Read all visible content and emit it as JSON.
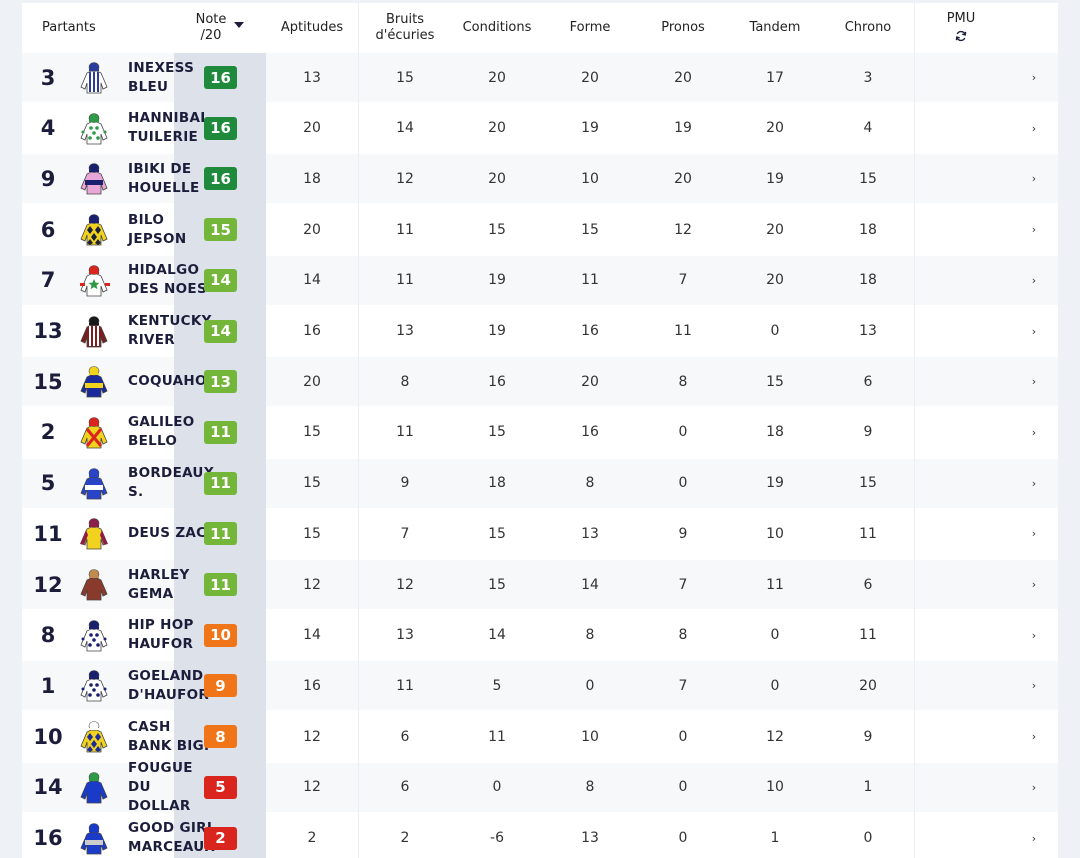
{
  "header": {
    "partants": "Partants",
    "note_line1": "Note",
    "note_line2": "/20",
    "aptitudes": "Aptitudes",
    "bruits_line1": "Bruits",
    "bruits_line2": "d'écuries",
    "conditions": "Conditions",
    "forme": "Forme",
    "pronos": "Pronos",
    "tandem": "Tandem",
    "chrono": "Chrono",
    "pmu": "PMU"
  },
  "colors": {
    "dark_green": "#1f8a3c",
    "light_green": "#74b63a",
    "orange": "#f07418",
    "red": "#d9251d"
  },
  "rows": [
    {
      "num": "3",
      "name": "INEXESS BLEU",
      "note": "16",
      "aptitudes": "13",
      "bruits": "15",
      "conditions": "20",
      "forme": "20",
      "pronos": "20",
      "tandem": "17",
      "chrono": "3",
      "badge": "dark_green",
      "silk": {
        "body": "#ffffff",
        "stripe": "#2a3c9c",
        "pattern": "stripes",
        "cap": "#2a3c9c"
      }
    },
    {
      "num": "4",
      "name": "HANNIBAL TUILERIE",
      "note": "16",
      "aptitudes": "20",
      "bruits": "14",
      "conditions": "20",
      "forme": "19",
      "pronos": "19",
      "tandem": "20",
      "chrono": "4",
      "badge": "dark_green",
      "silk": {
        "body": "#ffffff",
        "stripe": "#2f9a45",
        "pattern": "dots",
        "cap": "#2f9a45"
      }
    },
    {
      "num": "9",
      "name": "IBIKI DE HOUELLE",
      "note": "16",
      "aptitudes": "18",
      "bruits": "12",
      "conditions": "20",
      "forme": "10",
      "pronos": "20",
      "tandem": "19",
      "chrono": "15",
      "badge": "dark_green",
      "silk": {
        "body": "#e9a6d8",
        "stripe": "#1a1f6e",
        "pattern": "band",
        "cap": "#1a1f6e"
      }
    },
    {
      "num": "6",
      "name": "BILO JEPSON",
      "note": "15",
      "aptitudes": "20",
      "bruits": "11",
      "conditions": "15",
      "forme": "15",
      "pronos": "12",
      "tandem": "20",
      "chrono": "18",
      "badge": "light_green",
      "silk": {
        "body": "#f1d21f",
        "stripe": "#1a1f3a",
        "pattern": "diamonds",
        "cap": "#1a1f6e"
      }
    },
    {
      "num": "7",
      "name": "HIDALGO DES NOES",
      "note": "14",
      "aptitudes": "14",
      "bruits": "11",
      "conditions": "19",
      "forme": "11",
      "pronos": "7",
      "tandem": "20",
      "chrono": "18",
      "badge": "light_green",
      "silk": {
        "body": "#ffffff",
        "stripe": "#2f9a45",
        "pattern": "star",
        "cap": "#d9251d"
      }
    },
    {
      "num": "13",
      "name": "KENTUCKY RIVER",
      "note": "14",
      "aptitudes": "16",
      "bruits": "13",
      "conditions": "19",
      "forme": "16",
      "pronos": "11",
      "tandem": "0",
      "chrono": "13",
      "badge": "light_green",
      "silk": {
        "body": "#7a1f1f",
        "stripe": "#ffffff",
        "pattern": "stripes",
        "cap": "#1a1a1a"
      }
    },
    {
      "num": "15",
      "name": "COQUAHO",
      "note": "13",
      "aptitudes": "20",
      "bruits": "8",
      "conditions": "16",
      "forme": "20",
      "pronos": "8",
      "tandem": "15",
      "chrono": "6",
      "badge": "light_green",
      "silk": {
        "body": "#1a2a9a",
        "stripe": "#f1d21f",
        "pattern": "band",
        "cap": "#f1d21f"
      }
    },
    {
      "num": "2",
      "name": "GALILEO BELLO",
      "note": "11",
      "aptitudes": "15",
      "bruits": "11",
      "conditions": "15",
      "forme": "16",
      "pronos": "0",
      "tandem": "18",
      "chrono": "9",
      "badge": "light_green",
      "silk": {
        "body": "#f1d21f",
        "stripe": "#d9251d",
        "pattern": "cross",
        "cap": "#d9251d"
      }
    },
    {
      "num": "5",
      "name": "BORDEAUX S.",
      "note": "11",
      "aptitudes": "15",
      "bruits": "9",
      "conditions": "18",
      "forme": "8",
      "pronos": "0",
      "tandem": "19",
      "chrono": "15",
      "badge": "light_green",
      "silk": {
        "body": "#2a44c8",
        "stripe": "#ffffff",
        "pattern": "band",
        "cap": "#2a44c8"
      }
    },
    {
      "num": "11",
      "name": "DEUS ZACK",
      "note": "11",
      "aptitudes": "15",
      "bruits": "7",
      "conditions": "15",
      "forme": "13",
      "pronos": "9",
      "tandem": "10",
      "chrono": "11",
      "badge": "light_green",
      "silk": {
        "body": "#f1d21f",
        "stripe": "#8a1f4a",
        "pattern": "sleeves",
        "cap": "#8a1f4a"
      }
    },
    {
      "num": "12",
      "name": "HARLEY GEMA",
      "note": "11",
      "aptitudes": "12",
      "bruits": "12",
      "conditions": "15",
      "forme": "14",
      "pronos": "7",
      "tandem": "11",
      "chrono": "6",
      "badge": "light_green",
      "silk": {
        "body": "#8a3a2a",
        "stripe": "#8a3a2a",
        "pattern": "plain",
        "cap": "#c08a50"
      }
    },
    {
      "num": "8",
      "name": "HIP HOP HAUFOR",
      "note": "10",
      "aptitudes": "14",
      "bruits": "13",
      "conditions": "14",
      "forme": "8",
      "pronos": "8",
      "tandem": "0",
      "chrono": "11",
      "badge": "orange",
      "silk": {
        "body": "#ffffff",
        "stripe": "#1a1f6e",
        "pattern": "dots",
        "cap": "#1a1f6e"
      }
    },
    {
      "num": "1",
      "name": "GOELAND D'HAUFOR",
      "note": "9",
      "aptitudes": "16",
      "bruits": "11",
      "conditions": "5",
      "forme": "0",
      "pronos": "7",
      "tandem": "0",
      "chrono": "20",
      "badge": "orange",
      "silk": {
        "body": "#ffffff",
        "stripe": "#1a1f6e",
        "pattern": "dots",
        "cap": "#1a1f6e"
      }
    },
    {
      "num": "10",
      "name": "CASH BANK BIGI",
      "note": "8",
      "aptitudes": "12",
      "bruits": "6",
      "conditions": "11",
      "forme": "10",
      "pronos": "0",
      "tandem": "12",
      "chrono": "9",
      "badge": "orange",
      "silk": {
        "body": "#f1d21f",
        "stripe": "#1a2a9a",
        "pattern": "diamonds",
        "cap": "#ffffff"
      }
    },
    {
      "num": "14",
      "name": "FOUGUE DU DOLLAR",
      "note": "5",
      "aptitudes": "12",
      "bruits": "6",
      "conditions": "0",
      "forme": "8",
      "pronos": "0",
      "tandem": "10",
      "chrono": "1",
      "badge": "red",
      "silk": {
        "body": "#1a3ac8",
        "stripe": "#1a3ac8",
        "pattern": "plain",
        "cap": "#2f9a45"
      }
    },
    {
      "num": "16",
      "name": "GOOD GIRL MARCEAUX",
      "note": "2",
      "aptitudes": "2",
      "bruits": "2",
      "conditions": "-6",
      "forme": "13",
      "pronos": "0",
      "tandem": "1",
      "chrono": "0",
      "badge": "red",
      "silk": {
        "body": "#1a3ac8",
        "stripe": "#cccccc",
        "pattern": "band",
        "cap": "#1a3ac8"
      }
    }
  ]
}
